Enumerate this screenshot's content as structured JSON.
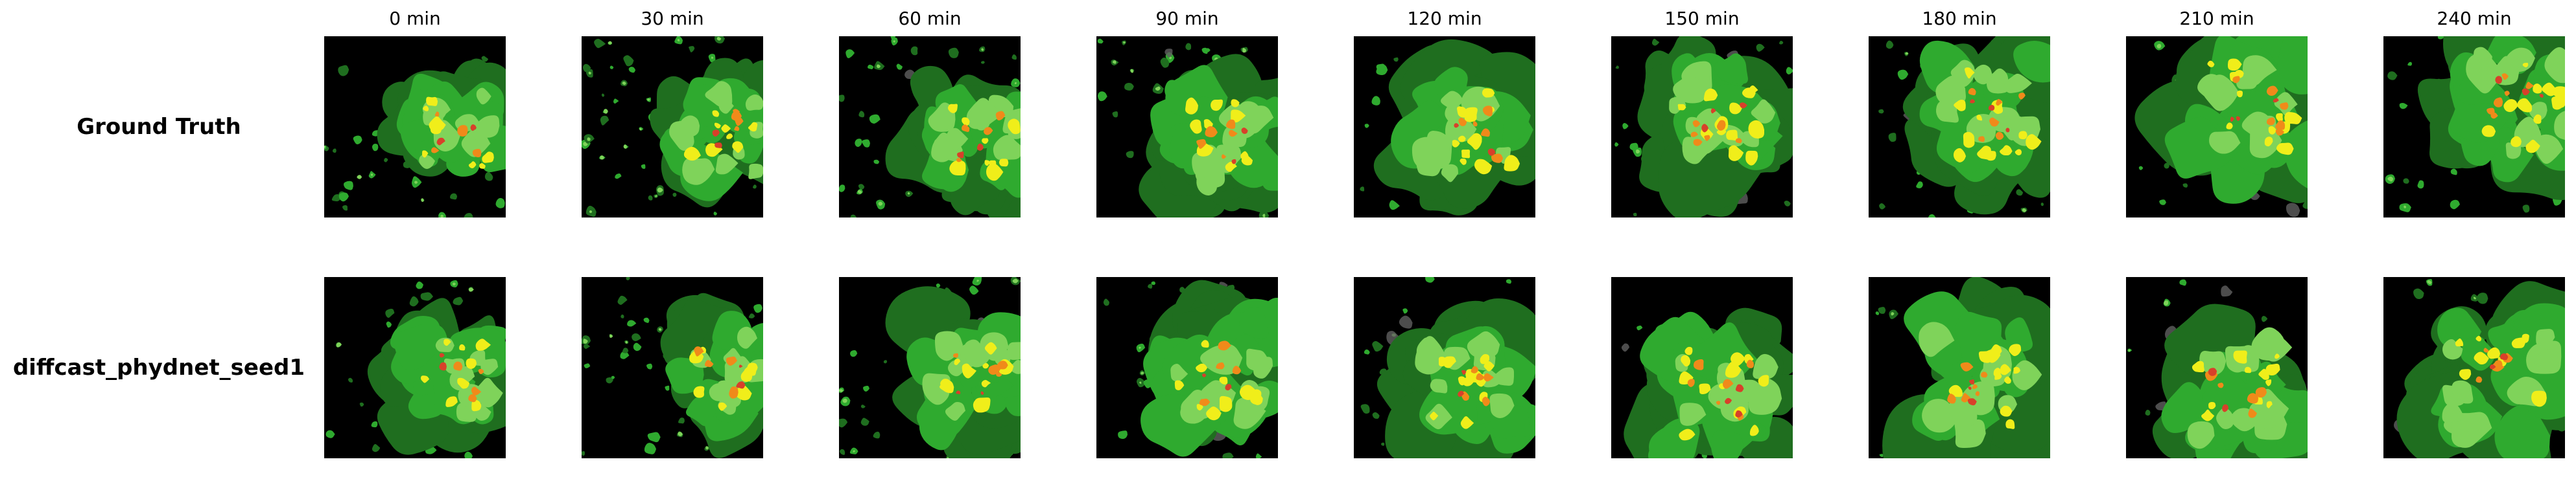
{
  "columns": [
    "0 min",
    "30 min",
    "60 min",
    "90 min",
    "120 min",
    "150 min",
    "180 min",
    "210 min",
    "240 min"
  ],
  "rows": [
    {
      "label": "Ground Truth",
      "kind": "truth"
    },
    {
      "label": "diffcast_phydnet_seed1",
      "kind": "prediction"
    }
  ],
  "colors": {
    "background": "#000000",
    "green_dark": "#1f6e1f",
    "green": "#2faa2f",
    "green_light": "#7fd35a",
    "yellow": "#f0ee1a",
    "orange": "#f08a1a",
    "red": "#d8402a",
    "gray": "#606060"
  }
}
